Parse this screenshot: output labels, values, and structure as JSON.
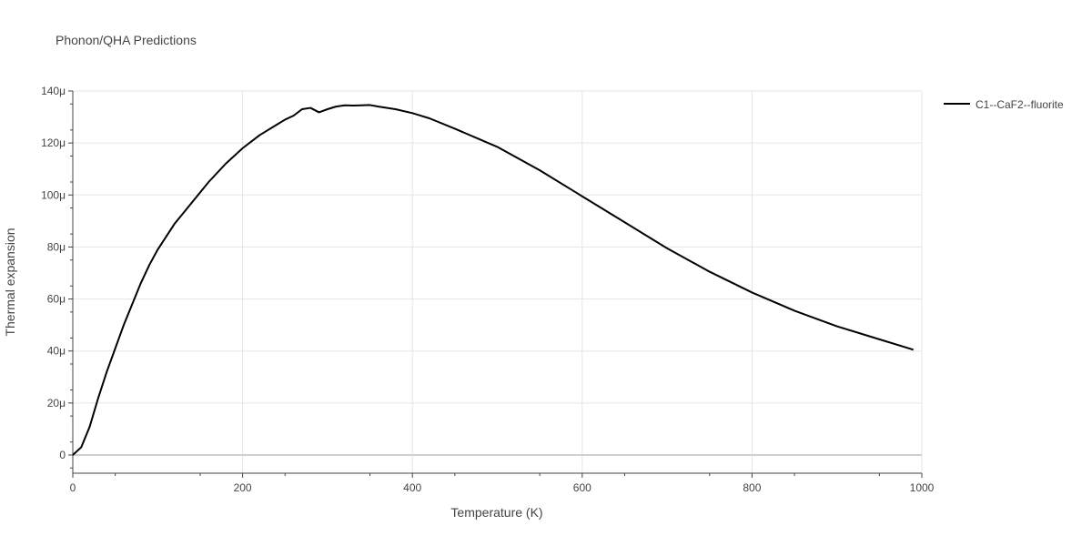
{
  "chart_data": {
    "type": "line",
    "title": "Phonon/QHA Predictions",
    "xlabel": "Temperature (K)",
    "ylabel": "Thermal expansion",
    "xlim": [
      0,
      1000
    ],
    "ylim": [
      -7,
      140
    ],
    "x_ticks": [
      "0",
      "200",
      "400",
      "600",
      "800",
      "1000"
    ],
    "x_tick_values": [
      0,
      200,
      400,
      600,
      800,
      1000
    ],
    "y_ticks": [
      "0",
      "20μ",
      "40μ",
      "60μ",
      "80μ",
      "100μ",
      "120μ",
      "140μ"
    ],
    "y_tick_values": [
      0,
      20,
      40,
      60,
      80,
      100,
      120,
      140
    ],
    "grid": true,
    "legend_position": "top-right",
    "series": [
      {
        "name": "C1--CaF2--fluorite",
        "color": "#000000",
        "x": [
          0,
          10,
          20,
          30,
          40,
          50,
          60,
          70,
          80,
          90,
          100,
          120,
          140,
          160,
          180,
          200,
          220,
          240,
          250,
          260,
          270,
          280,
          290,
          300,
          310,
          320,
          330,
          340,
          350,
          360,
          380,
          400,
          420,
          450,
          500,
          550,
          600,
          650,
          700,
          750,
          800,
          850,
          900,
          950,
          990
        ],
        "y": [
          0,
          3,
          11,
          22,
          32,
          41,
          50,
          58,
          66,
          73,
          79,
          89,
          97,
          105,
          112,
          118,
          123,
          127,
          129,
          130.5,
          133,
          133.5,
          131.8,
          133,
          134,
          134.5,
          134.4,
          134.5,
          134.6,
          134,
          133,
          131.5,
          129.5,
          125.5,
          118.5,
          109.5,
          99.5,
          89.5,
          79.5,
          70.5,
          62.5,
          55.5,
          49.5,
          44.5,
          40.5
        ]
      }
    ]
  }
}
